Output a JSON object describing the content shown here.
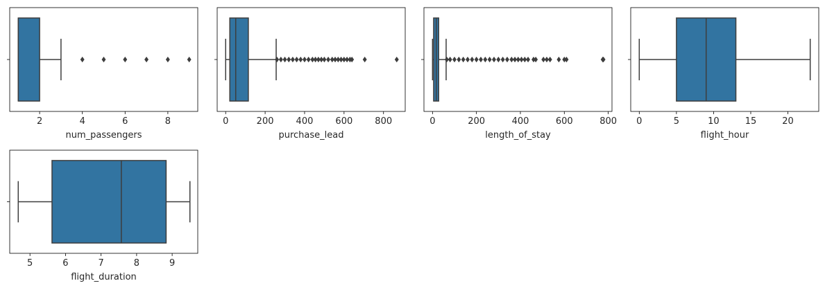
{
  "colors": {
    "box_fill": "#3274a1",
    "box_edge": "#3d3d3d",
    "outlier": "#3d3d3d",
    "axes_edge": "#000000"
  },
  "chart_data": [
    {
      "type": "box",
      "xlabel": "num_passengers",
      "xlim": [
        0.6,
        9.4
      ],
      "xticks": [
        2,
        4,
        6,
        8
      ],
      "min": 1,
      "q1": 1,
      "median": 1,
      "q3": 2,
      "max": 3,
      "outliers": [
        4,
        5,
        6,
        7,
        8,
        9
      ]
    },
    {
      "type": "box",
      "xlabel": "purchase_lead",
      "xlim": [
        -43,
        910
      ],
      "xticks": [
        0,
        200,
        400,
        600,
        800
      ],
      "min": 0,
      "q1": 21,
      "median": 51,
      "q3": 115,
      "max": 256,
      "outliers": [
        260,
        280,
        300,
        320,
        340,
        360,
        380,
        400,
        420,
        440,
        455,
        470,
        485,
        500,
        520,
        540,
        555,
        570,
        585,
        600,
        615,
        630,
        640,
        705,
        867
      ]
    },
    {
      "type": "box",
      "xlabel": "length_of_stay",
      "xlim": [
        -39,
        817
      ],
      "xticks": [
        0,
        200,
        400,
        600,
        800
      ],
      "min": 0,
      "q1": 5,
      "median": 17,
      "q3": 28,
      "max": 62,
      "outliers": [
        65,
        80,
        100,
        120,
        140,
        160,
        180,
        200,
        220,
        240,
        260,
        280,
        300,
        320,
        340,
        360,
        375,
        390,
        405,
        420,
        435,
        460,
        470,
        505,
        520,
        535,
        575,
        600,
        610,
        775,
        778
      ]
    },
    {
      "type": "box",
      "xlabel": "flight_hour",
      "xlim": [
        -1.15,
        24.15
      ],
      "xticks": [
        0,
        5,
        10,
        15,
        20
      ],
      "min": 0,
      "q1": 5,
      "median": 9,
      "q3": 13,
      "max": 23,
      "outliers": []
    },
    {
      "type": "box",
      "xlabel": "flight_duration",
      "xlim": [
        4.43,
        9.72
      ],
      "xticks": [
        5,
        6,
        7,
        8,
        9
      ],
      "min": 4.67,
      "q1": 5.62,
      "median": 7.57,
      "q3": 8.83,
      "max": 9.5,
      "outliers": []
    }
  ]
}
